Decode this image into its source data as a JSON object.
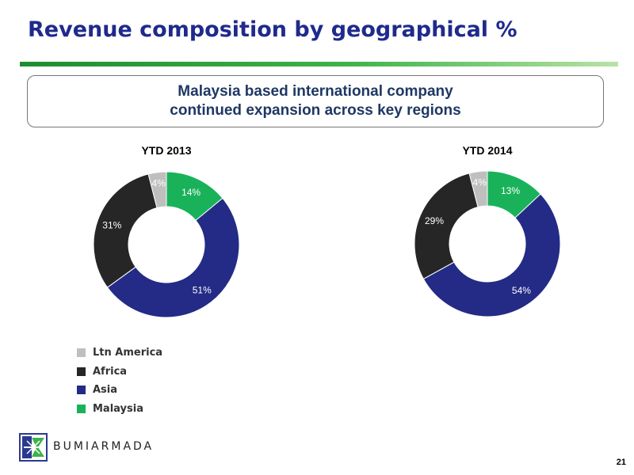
{
  "header": {
    "title": "Revenue composition by geographical %",
    "subtitle_line1": "Malaysia based international company",
    "subtitle_line2": "continued expansion across key regions"
  },
  "colors": {
    "title": "#1f2a8c",
    "subtitle": "#1f3864",
    "malaysia": "#19b25a",
    "asia": "#232b86",
    "africa": "#262626",
    "ltn_america": "#bfbfbf"
  },
  "chart_data": [
    {
      "type": "pie",
      "title": "YTD 2013",
      "categories": [
        "Malaysia",
        "Asia",
        "Africa",
        "Ltn America"
      ],
      "values": [
        14,
        51,
        31,
        4
      ],
      "labels": [
        "14%",
        "51%",
        "31%",
        "4%"
      ],
      "donut": true
    },
    {
      "type": "pie",
      "title": "YTD 2014",
      "categories": [
        "Malaysia",
        "Asia",
        "Africa",
        "Ltn America"
      ],
      "values": [
        13,
        54,
        29,
        4
      ],
      "labels": [
        "13%",
        "54%",
        "29%",
        "4%"
      ],
      "donut": true
    }
  ],
  "legend": {
    "placement": "bottom-left",
    "items": [
      "Ltn America",
      "Africa",
      "Asia",
      "Malaysia"
    ]
  },
  "footer": {
    "brand": "BUMIARMADA",
    "page_number": "21"
  }
}
